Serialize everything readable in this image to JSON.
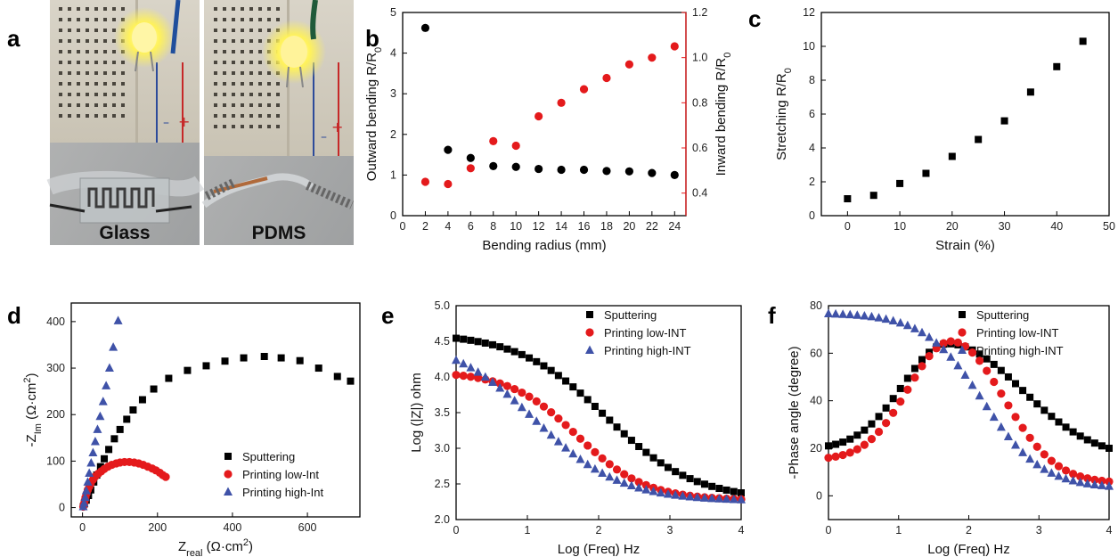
{
  "panel_labels": {
    "a": "a",
    "b": "b",
    "c": "c",
    "d": "d",
    "e": "e",
    "f": "f"
  },
  "photos": {
    "left_caption": "Glass",
    "right_caption": "PDMS"
  },
  "chart_data": [
    {
      "id": "b",
      "type": "scatter",
      "title": "",
      "xlabel": "Bending radius (mm)",
      "ylabel": "Outward bending R/R₀",
      "y2label": "Inward bending R/R₀",
      "xlim": [
        0,
        25
      ],
      "ylim": [
        0,
        5
      ],
      "y2lim": [
        0.3,
        1.2
      ],
      "xticks": [
        0,
        2,
        4,
        6,
        8,
        10,
        12,
        14,
        16,
        18,
        20,
        22,
        24
      ],
      "yticks": [
        0,
        1,
        2,
        3,
        4,
        5
      ],
      "y2ticks": [
        0.4,
        0.6,
        0.8,
        1.0,
        1.2
      ],
      "y2ticklabels": [
        "0.4",
        "0.6",
        "0.8",
        "1.0",
        "1.2"
      ],
      "y2color": "#e41a1c",
      "series": [
        {
          "axis": "left",
          "color": "#000000",
          "marker": "circle",
          "x": [
            2,
            4,
            6,
            8,
            10,
            12,
            14,
            16,
            18,
            20,
            22,
            24
          ],
          "y": [
            4.62,
            1.62,
            1.42,
            1.22,
            1.2,
            1.15,
            1.13,
            1.13,
            1.1,
            1.09,
            1.05,
            1.0
          ]
        },
        {
          "axis": "right",
          "color": "#e41a1c",
          "marker": "circle",
          "x": [
            2,
            4,
            6,
            8,
            10,
            12,
            14,
            16,
            18,
            20,
            22,
            24
          ],
          "y": [
            0.45,
            0.44,
            0.51,
            0.63,
            0.61,
            0.74,
            0.8,
            0.86,
            0.91,
            0.97,
            1.0,
            1.05
          ]
        }
      ]
    },
    {
      "id": "c",
      "type": "scatter",
      "title": "",
      "xlabel": "Strain (%)",
      "ylabel": "Stretching R/R₀",
      "xlim": [
        -5,
        50
      ],
      "ylim": [
        0,
        12
      ],
      "xticks": [
        0,
        10,
        20,
        30,
        40,
        50
      ],
      "yticks": [
        0,
        2,
        4,
        6,
        8,
        10,
        12
      ],
      "series": [
        {
          "color": "#000000",
          "marker": "square",
          "x": [
            0,
            5,
            10,
            15,
            20,
            25,
            30,
            35,
            40,
            45
          ],
          "y": [
            1.0,
            1.2,
            1.9,
            2.5,
            3.5,
            4.5,
            5.6,
            7.3,
            8.8,
            10.3
          ]
        }
      ]
    },
    {
      "id": "d",
      "type": "scatter",
      "title": "",
      "xlabel": "Z_real (Ω·cm²)",
      "ylabel": "-Z_Im (Ω·cm²)",
      "xlim": [
        -30,
        740
      ],
      "ylim": [
        -20,
        440
      ],
      "xticks": [
        0,
        200,
        400,
        600
      ],
      "yticks": [
        0,
        100,
        200,
        300,
        400
      ],
      "legend_position": "bottom-right",
      "series": [
        {
          "name": "Sputtering",
          "color": "#000000",
          "marker": "square",
          "points": [
            [
              2,
              2
            ],
            [
              5,
              8
            ],
            [
              10,
              16
            ],
            [
              16,
              26
            ],
            [
              22,
              38
            ],
            [
              30,
              55
            ],
            [
              38,
              70
            ],
            [
              48,
              88
            ],
            [
              58,
              105
            ],
            [
              70,
              125
            ],
            [
              85,
              148
            ],
            [
              100,
              168
            ],
            [
              118,
              190
            ],
            [
              135,
              210
            ],
            [
              160,
              232
            ],
            [
              190,
              255
            ],
            [
              230,
              278
            ],
            [
              280,
              295
            ],
            [
              330,
              305
            ],
            [
              380,
              315
            ],
            [
              430,
              322
            ],
            [
              485,
              325
            ],
            [
              530,
              322
            ],
            [
              580,
              316
            ],
            [
              630,
              300
            ],
            [
              680,
              282
            ],
            [
              715,
              272
            ]
          ]
        },
        {
          "name": "Printing low-Int",
          "color": "#e41a1c",
          "marker": "circle",
          "points": [
            [
              2,
              2
            ],
            [
              4,
              8
            ],
            [
              6,
              15
            ],
            [
              8,
              22
            ],
            [
              11,
              30
            ],
            [
              14,
              38
            ],
            [
              18,
              45
            ],
            [
              22,
              52
            ],
            [
              28,
              60
            ],
            [
              34,
              67
            ],
            [
              42,
              73
            ],
            [
              50,
              78
            ],
            [
              58,
              83
            ],
            [
              68,
              88
            ],
            [
              78,
              92
            ],
            [
              90,
              95
            ],
            [
              100,
              97
            ],
            [
              112,
              98
            ],
            [
              125,
              98
            ],
            [
              138,
              97
            ],
            [
              150,
              95
            ],
            [
              162,
              92
            ],
            [
              174,
              88
            ],
            [
              186,
              84
            ],
            [
              196,
              80
            ],
            [
              206,
              75
            ],
            [
              214,
              70
            ],
            [
              222,
              66
            ]
          ]
        },
        {
          "name": "Printing high-Int",
          "color": "#3f52a8",
          "marker": "triangle",
          "points": [
            [
              2,
              2
            ],
            [
              4,
              10
            ],
            [
              7,
              22
            ],
            [
              10,
              36
            ],
            [
              14,
              55
            ],
            [
              18,
              74
            ],
            [
              23,
              96
            ],
            [
              28,
              118
            ],
            [
              34,
              142
            ],
            [
              40,
              168
            ],
            [
              47,
              196
            ],
            [
              55,
              228
            ],
            [
              63,
              262
            ],
            [
              72,
              300
            ],
            [
              82,
              345
            ],
            [
              95,
              402
            ]
          ]
        }
      ]
    },
    {
      "id": "e",
      "type": "scatter",
      "title": "",
      "xlabel": "Log (Freq) Hz",
      "ylabel": "Log (|Z|) ohm",
      "xlim": [
        0,
        4
      ],
      "ylim": [
        2.0,
        5.0
      ],
      "xticks": [
        0,
        1,
        2,
        3,
        4
      ],
      "yticks": [
        2.0,
        2.5,
        3.0,
        3.5,
        4.0,
        4.5,
        5.0
      ],
      "yticklabels": [
        "2.0",
        "2.5",
        "3.0",
        "3.5",
        "4.0",
        "4.5",
        "5.0"
      ],
      "legend_position": "top-right",
      "curves": [
        {
          "name": "Sputtering",
          "color": "#000000",
          "marker": "square",
          "n": 40,
          "fn": "sigmoid",
          "params": {
            "high": 4.62,
            "low": 2.27,
            "mid": 2.1,
            "width": 0.62
          }
        },
        {
          "name": "Printing low-INT",
          "color": "#e41a1c",
          "marker": "circle",
          "n": 40,
          "fn": "sigmoid",
          "params": {
            "high": 4.08,
            "low": 2.27,
            "mid": 1.7,
            "width": 0.48
          }
        },
        {
          "name": "Printing high-INT",
          "color": "#3f52a8",
          "marker": "triangle",
          "n": 40,
          "fn": "sigmoid",
          "params": {
            "high": 4.55,
            "low": 2.26,
            "mid": 1.1,
            "width": 0.6
          }
        }
      ]
    },
    {
      "id": "f",
      "type": "scatter",
      "title": "",
      "xlabel": "Log (Freq) Hz",
      "ylabel": "-Phase angle (degree)",
      "xlim": [
        0,
        4
      ],
      "ylim": [
        -10,
        80
      ],
      "xticks": [
        0,
        1,
        2,
        3,
        4
      ],
      "yticks": [
        0,
        20,
        40,
        60,
        80
      ],
      "legend_position": "top-right",
      "curves": [
        {
          "name": "Sputtering",
          "color": "#000000",
          "marker": "square",
          "n": 40,
          "fn": "peak",
          "params": {
            "base": 0,
            "peak": 64,
            "center": 1.7,
            "wl": 0.95,
            "wr": 1.55,
            "start": 21,
            "end": 20
          }
        },
        {
          "name": "Printing low-INT",
          "color": "#e41a1c",
          "marker": "circle",
          "n": 40,
          "fn": "peak",
          "params": {
            "base": 0,
            "peak": 65,
            "center": 1.75,
            "wl": 0.9,
            "wr": 1.1,
            "start": 16,
            "end": 6
          }
        },
        {
          "name": "Printing high-INT",
          "color": "#3f52a8",
          "marker": "triangle",
          "n": 40,
          "fn": "plateau",
          "params": {
            "high": 77,
            "low": 3,
            "mid": 2.2,
            "width": 0.42
          }
        }
      ]
    }
  ]
}
